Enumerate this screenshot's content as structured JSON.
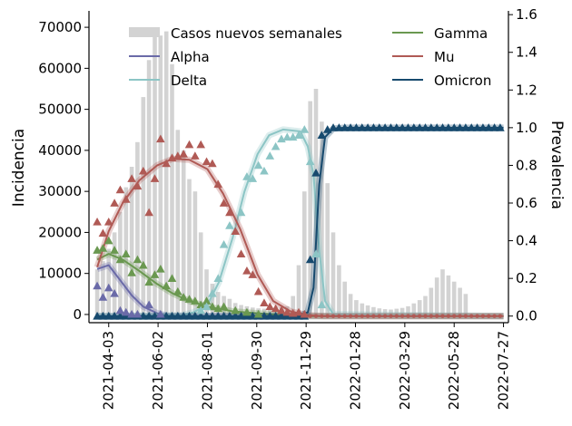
{
  "chart_data": {
    "type": "bar+line+scatter",
    "title": "",
    "xlabel": "",
    "ylabel_left": "Incidencia",
    "ylabel_right": "Prevalencia",
    "x_start": "2021-03-10",
    "x_end": "2022-08-02",
    "xticks": [
      "2021-04-03",
      "2021-06-02",
      "2021-08-01",
      "2021-09-30",
      "2021-11-29",
      "2022-01-28",
      "2022-03-29",
      "2022-05-28",
      "2022-07-27"
    ],
    "ylim_left": [
      -2000,
      74000
    ],
    "ylim_right": [
      -0.035,
      1.62
    ],
    "yticks_left": [
      0,
      10000,
      20000,
      30000,
      40000,
      50000,
      60000,
      70000
    ],
    "yticks_right": [
      0.0,
      0.2,
      0.4,
      0.6,
      0.8,
      1.0,
      1.2,
      1.4,
      1.6
    ],
    "legend_position": "top",
    "bars": {
      "name": "Casos nuevos semanales",
      "color": "#d3d3d3",
      "start_date": "2021-03-20",
      "values": [
        11000,
        13000,
        16000,
        20000,
        25000,
        31000,
        36000,
        42000,
        53000,
        62000,
        68000,
        68000,
        69000,
        61000,
        45000,
        40000,
        33000,
        30000,
        20000,
        11000,
        7500,
        5500,
        4500,
        3800,
        2800,
        2300,
        2000,
        1700,
        1500,
        1400,
        1400,
        1500,
        1700,
        2000,
        4500,
        12000,
        30000,
        52000,
        55000,
        47000,
        32000,
        20000,
        12000,
        8000,
        5000,
        3500,
        2700,
        2200,
        1800,
        1500,
        1300,
        1200,
        1400,
        1600,
        2000,
        2700,
        3500,
        4500,
        6500,
        9000,
        11000,
        9500,
        8000,
        6500,
        5000
      ]
    },
    "series": [
      {
        "name": "Alpha",
        "color": "#6a6aa8",
        "fit": [
          [
            "2021-03-20",
            0.25
          ],
          [
            "2021-04-03",
            0.27
          ],
          [
            "2021-04-17",
            0.19
          ],
          [
            "2021-05-01",
            0.11
          ],
          [
            "2021-05-15",
            0.05
          ],
          [
            "2021-06-01",
            0.015
          ],
          [
            "2021-06-15",
            0.0
          ],
          [
            "2022-07-27",
            0.0
          ]
        ],
        "points": [
          [
            "2021-03-20",
            0.16
          ],
          [
            "2021-03-27",
            0.1
          ],
          [
            "2021-04-03",
            0.15
          ],
          [
            "2021-04-10",
            0.12
          ],
          [
            "2021-04-17",
            0.03
          ],
          [
            "2021-04-24",
            0.02
          ],
          [
            "2021-05-01",
            0.01
          ],
          [
            "2021-05-08",
            0.01
          ],
          [
            "2021-05-22",
            0.06
          ],
          [
            "2021-06-05",
            0.01
          ]
        ]
      },
      {
        "name": "Delta",
        "color": "#8cc5c5",
        "fit": [
          [
            "2021-03-20",
            0.0
          ],
          [
            "2021-07-01",
            0.005
          ],
          [
            "2021-07-15",
            0.02
          ],
          [
            "2021-08-01",
            0.06
          ],
          [
            "2021-08-15",
            0.18
          ],
          [
            "2021-09-01",
            0.42
          ],
          [
            "2021-09-15",
            0.66
          ],
          [
            "2021-10-01",
            0.86
          ],
          [
            "2021-10-15",
            0.96
          ],
          [
            "2021-11-01",
            0.99
          ],
          [
            "2021-11-22",
            0.98
          ],
          [
            "2021-12-01",
            0.9
          ],
          [
            "2021-12-08",
            0.75
          ],
          [
            "2021-12-15",
            0.35
          ],
          [
            "2021-12-22",
            0.08
          ],
          [
            "2022-01-01",
            0.01
          ],
          [
            "2022-07-27",
            0.0
          ]
        ],
        "points": [
          [
            "2021-07-24",
            0.03
          ],
          [
            "2021-07-31",
            0.05
          ],
          [
            "2021-08-07",
            0.12
          ],
          [
            "2021-08-14",
            0.2
          ],
          [
            "2021-08-21",
            0.38
          ],
          [
            "2021-08-28",
            0.48
          ],
          [
            "2021-09-04",
            0.45
          ],
          [
            "2021-09-11",
            0.55
          ],
          [
            "2021-09-18",
            0.74
          ],
          [
            "2021-09-25",
            0.73
          ],
          [
            "2021-10-02",
            0.8
          ],
          [
            "2021-10-09",
            0.77
          ],
          [
            "2021-10-16",
            0.85
          ],
          [
            "2021-10-23",
            0.9
          ],
          [
            "2021-10-30",
            0.94
          ],
          [
            "2021-11-06",
            0.95
          ],
          [
            "2021-11-13",
            0.95
          ],
          [
            "2021-11-20",
            0.96
          ],
          [
            "2021-11-27",
            0.99
          ],
          [
            "2021-12-04",
            0.82
          ],
          [
            "2021-12-11",
            0.33
          ],
          [
            "2021-12-18",
            0.06
          ]
        ]
      },
      {
        "name": "Gamma",
        "color": "#6a9850",
        "fit": [
          [
            "2021-03-20",
            0.3
          ],
          [
            "2021-04-03",
            0.33
          ],
          [
            "2021-04-20",
            0.3
          ],
          [
            "2021-05-10",
            0.24
          ],
          [
            "2021-06-01",
            0.17
          ],
          [
            "2021-06-20",
            0.12
          ],
          [
            "2021-07-10",
            0.08
          ],
          [
            "2021-08-01",
            0.05
          ],
          [
            "2021-09-01",
            0.025
          ],
          [
            "2021-10-01",
            0.015
          ],
          [
            "2021-11-01",
            0.005
          ],
          [
            "2021-12-01",
            0.0
          ],
          [
            "2022-07-27",
            0.0
          ]
        ],
        "points": [
          [
            "2021-03-20",
            0.35
          ],
          [
            "2021-03-27",
            0.36
          ],
          [
            "2021-04-03",
            0.4
          ],
          [
            "2021-04-10",
            0.35
          ],
          [
            "2021-04-17",
            0.3
          ],
          [
            "2021-04-24",
            0.33
          ],
          [
            "2021-05-01",
            0.23
          ],
          [
            "2021-05-08",
            0.3
          ],
          [
            "2021-05-15",
            0.27
          ],
          [
            "2021-05-22",
            0.18
          ],
          [
            "2021-05-29",
            0.22
          ],
          [
            "2021-06-05",
            0.25
          ],
          [
            "2021-06-12",
            0.16
          ],
          [
            "2021-06-19",
            0.2
          ],
          [
            "2021-06-26",
            0.13
          ],
          [
            "2021-07-03",
            0.1
          ],
          [
            "2021-07-10",
            0.09
          ],
          [
            "2021-07-17",
            0.08
          ],
          [
            "2021-07-24",
            0.06
          ],
          [
            "2021-07-31",
            0.08
          ],
          [
            "2021-08-07",
            0.05
          ],
          [
            "2021-08-14",
            0.04
          ],
          [
            "2021-08-21",
            0.05
          ],
          [
            "2021-09-04",
            0.03
          ],
          [
            "2021-09-18",
            0.02
          ],
          [
            "2021-10-02",
            0.01
          ]
        ]
      },
      {
        "name": "Mu",
        "color": "#b05a55",
        "fit": [
          [
            "2021-03-20",
            0.26
          ],
          [
            "2021-04-03",
            0.45
          ],
          [
            "2021-04-20",
            0.6
          ],
          [
            "2021-05-10",
            0.72
          ],
          [
            "2021-06-01",
            0.8
          ],
          [
            "2021-06-20",
            0.835
          ],
          [
            "2021-07-10",
            0.83
          ],
          [
            "2021-08-01",
            0.78
          ],
          [
            "2021-08-20",
            0.65
          ],
          [
            "2021-09-10",
            0.46
          ],
          [
            "2021-10-01",
            0.22
          ],
          [
            "2021-10-20",
            0.08
          ],
          [
            "2021-11-10",
            0.025
          ],
          [
            "2021-12-01",
            0.005
          ],
          [
            "2021-12-20",
            0.0
          ],
          [
            "2022-07-27",
            0.0
          ]
        ],
        "points": [
          [
            "2021-03-20",
            0.5
          ],
          [
            "2021-03-27",
            0.44
          ],
          [
            "2021-04-03",
            0.5
          ],
          [
            "2021-04-10",
            0.6
          ],
          [
            "2021-04-17",
            0.67
          ],
          [
            "2021-04-24",
            0.62
          ],
          [
            "2021-05-01",
            0.73
          ],
          [
            "2021-05-08",
            0.69
          ],
          [
            "2021-05-15",
            0.77
          ],
          [
            "2021-05-22",
            0.55
          ],
          [
            "2021-05-29",
            0.73
          ],
          [
            "2021-06-05",
            0.94
          ],
          [
            "2021-06-12",
            0.81
          ],
          [
            "2021-06-19",
            0.84
          ],
          [
            "2021-06-26",
            0.85
          ],
          [
            "2021-07-03",
            0.86
          ],
          [
            "2021-07-10",
            0.91
          ],
          [
            "2021-07-17",
            0.85
          ],
          [
            "2021-07-24",
            0.91
          ],
          [
            "2021-07-31",
            0.82
          ],
          [
            "2021-08-07",
            0.81
          ],
          [
            "2021-08-14",
            0.7
          ],
          [
            "2021-08-21",
            0.6
          ],
          [
            "2021-08-28",
            0.55
          ],
          [
            "2021-09-04",
            0.45
          ],
          [
            "2021-09-11",
            0.33
          ],
          [
            "2021-09-18",
            0.24
          ],
          [
            "2021-09-25",
            0.22
          ],
          [
            "2021-10-02",
            0.13
          ],
          [
            "2021-10-09",
            0.07
          ],
          [
            "2021-10-16",
            0.05
          ],
          [
            "2021-10-23",
            0.04
          ],
          [
            "2021-10-30",
            0.03
          ],
          [
            "2021-11-06",
            0.02
          ],
          [
            "2021-11-13",
            0.015
          ],
          [
            "2021-11-20",
            0.02
          ],
          [
            "2021-11-27",
            0.01
          ]
        ]
      },
      {
        "name": "Omicron",
        "color": "#174a6e",
        "fit": [
          [
            "2021-03-20",
            0.0
          ],
          [
            "2021-11-20",
            0.0
          ],
          [
            "2021-12-01",
            0.02
          ],
          [
            "2021-12-08",
            0.15
          ],
          [
            "2021-12-15",
            0.7
          ],
          [
            "2021-12-22",
            0.95
          ],
          [
            "2022-01-01",
            0.995
          ],
          [
            "2022-01-15",
            1.0
          ],
          [
            "2022-07-27",
            1.0
          ]
        ],
        "points_rule": "weekly from 2021-03-20 to 2022-07-27, value = 0 before 2021-12-04, then 0.3, 0.76, 0.96, 0.99, 1.0 thereafter"
      }
    ]
  },
  "legend": [
    {
      "label": "Casos nuevos semanales",
      "kind": "bar",
      "color": "#d3d3d3"
    },
    {
      "label": "Alpha",
      "kind": "line",
      "color": "#6a6aa8"
    },
    {
      "label": "Delta",
      "kind": "line",
      "color": "#8cc5c5"
    },
    {
      "label": "Gamma",
      "kind": "line",
      "color": "#6a9850"
    },
    {
      "label": "Mu",
      "kind": "line",
      "color": "#b05a55"
    },
    {
      "label": "Omicron",
      "kind": "line",
      "color": "#174a6e"
    }
  ]
}
